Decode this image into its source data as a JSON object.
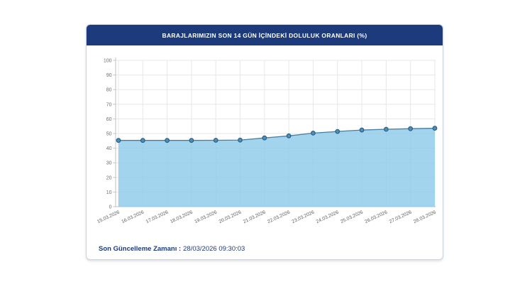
{
  "header": {
    "title": "BARAJLARIMIZIN SON 14 GÜN İÇİNDEKİ DOLULUK ORANLARI (%)"
  },
  "footer": {
    "label": "Son Güncelleme Zamanı :",
    "value": "28/03/2026 09:30:03"
  },
  "colors": {
    "header_bg": "#1d3b7c",
    "grid": "#e7e7e7",
    "axis": "#c2c2c2",
    "y_tick_text": "#6e6e6e",
    "x_tick_text": "#5f5f5f",
    "area_fill": "#8cc9ea",
    "line": "#4a7d9f",
    "point_fill": "#4f8fb5",
    "point_stroke": "#2c5f84",
    "footer_text": "#1d3b7c"
  },
  "chart_data": {
    "type": "area",
    "title": "BARAJLARIMIZIN SON 14 GÜN İÇİNDEKİ DOLULUK ORANLARI (%)",
    "categories": [
      "15.03.2026",
      "16.03.2026",
      "17.03.2026",
      "18.03.2026",
      "19.03.2026",
      "20.03.2026",
      "21.03.2026",
      "22.03.2026",
      "23.03.2026",
      "24.03.2026",
      "25.03.2026",
      "26.03.2026",
      "27.03.2026",
      "28.03.2026"
    ],
    "values": [
      45.3,
      45.3,
      45.3,
      45.3,
      45.4,
      45.5,
      47.0,
      48.4,
      50.3,
      51.4,
      52.4,
      52.9,
      53.3,
      53.6
    ],
    "xlabel": "",
    "ylabel": "",
    "ylim": [
      0,
      100
    ],
    "ytick_step": 10,
    "grid": true,
    "legend": false
  }
}
